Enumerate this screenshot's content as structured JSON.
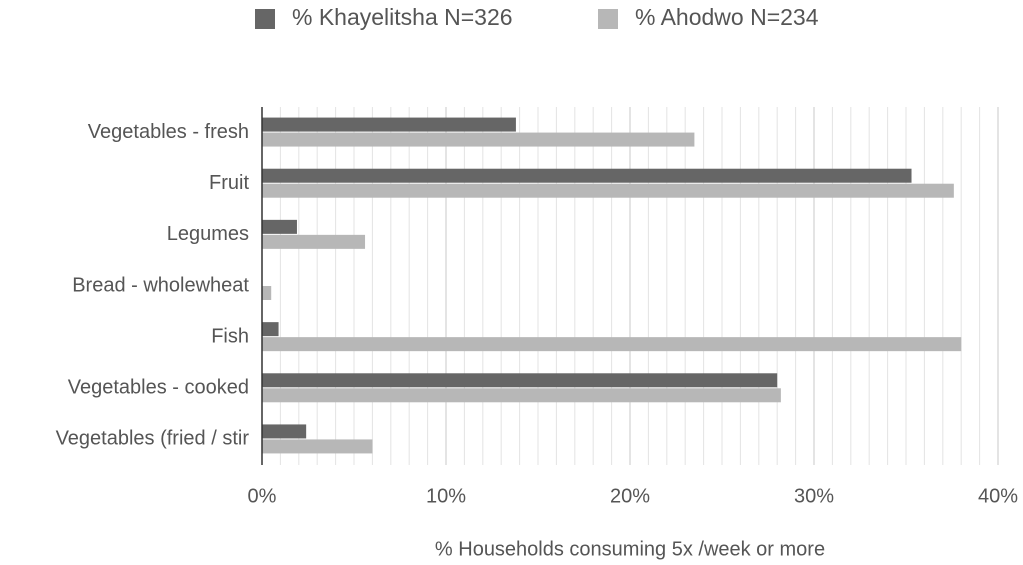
{
  "chart_data": {
    "type": "hbar",
    "xlabel": "% Households consuming 5x /week or more",
    "categories": [
      "Vegetables - fresh",
      "Fruit",
      "Legumes",
      "Bread - wholewheat",
      "Fish",
      "Vegetables - cooked",
      "Vegetables (fried / stir"
    ],
    "series": [
      {
        "name": "% Khayelitsha N=326",
        "color": "#666666",
        "values": [
          13.8,
          35.3,
          1.9,
          0,
          0.9,
          28.0,
          2.4
        ]
      },
      {
        "name": "% Ahodwo N=234",
        "color": "#b7b7b7",
        "values": [
          23.5,
          37.6,
          5.6,
          0.5,
          38.0,
          28.2,
          6.0
        ]
      }
    ],
    "xlim": [
      0,
      40
    ],
    "xticks": [
      {
        "value": 0,
        "label": "0%"
      },
      {
        "value": 10,
        "label": "10%"
      },
      {
        "value": 20,
        "label": "20%"
      },
      {
        "value": 30,
        "label": "30%"
      },
      {
        "value": 40,
        "label": "40%"
      }
    ],
    "grid": true,
    "minor_grid": true,
    "legend": "top"
  }
}
